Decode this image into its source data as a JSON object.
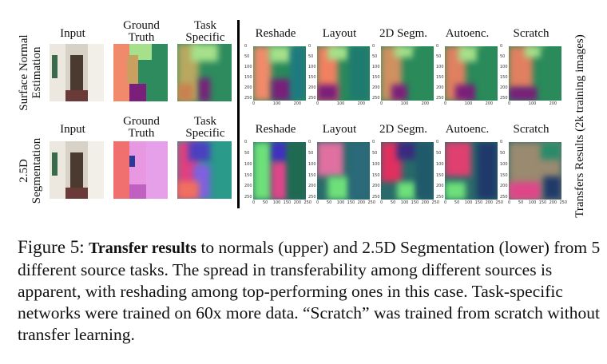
{
  "figure": {
    "row_labels": [
      "Surface Normal Estimation",
      "2.5D Segmentation"
    ],
    "left_headers": [
      "Input",
      "Ground Truth",
      "Task Specific"
    ],
    "transfer_headers": [
      "Reshade",
      "Layout",
      "2D Segm.",
      "Autoenc.",
      "Scratch"
    ],
    "side_label": "Transfers Results (2k training images)",
    "axis_ticks": {
      "y": [
        "0",
        "50",
        "100",
        "150",
        "200",
        "250"
      ],
      "x_top": [
        "0",
        "100",
        "200"
      ],
      "x_bottom": [
        "0",
        "50",
        "100",
        "150",
        "200",
        "250"
      ]
    },
    "colors": {
      "normal_green": "#2e8b5e",
      "normal_salmon": "#f08a6a",
      "normal_purple": "#7a1f7a",
      "normal_lime": "#a6e08a",
      "seg_pink": "#e0458a",
      "seg_green": "#6ee07a",
      "seg_navy": "#1f3a6a"
    }
  },
  "caption": {
    "label": "Figure 5:",
    "bold": "Transfer results",
    "text": " to normals (upper) and 2.5D Segmentation (lower) from 5 different source tasks. The spread in transferability among different sources is apparent, with reshading among top-performing ones in this case. Task-specific networks were trained on 60x more data. “Scratch” was trained from scratch without transfer learning."
  }
}
